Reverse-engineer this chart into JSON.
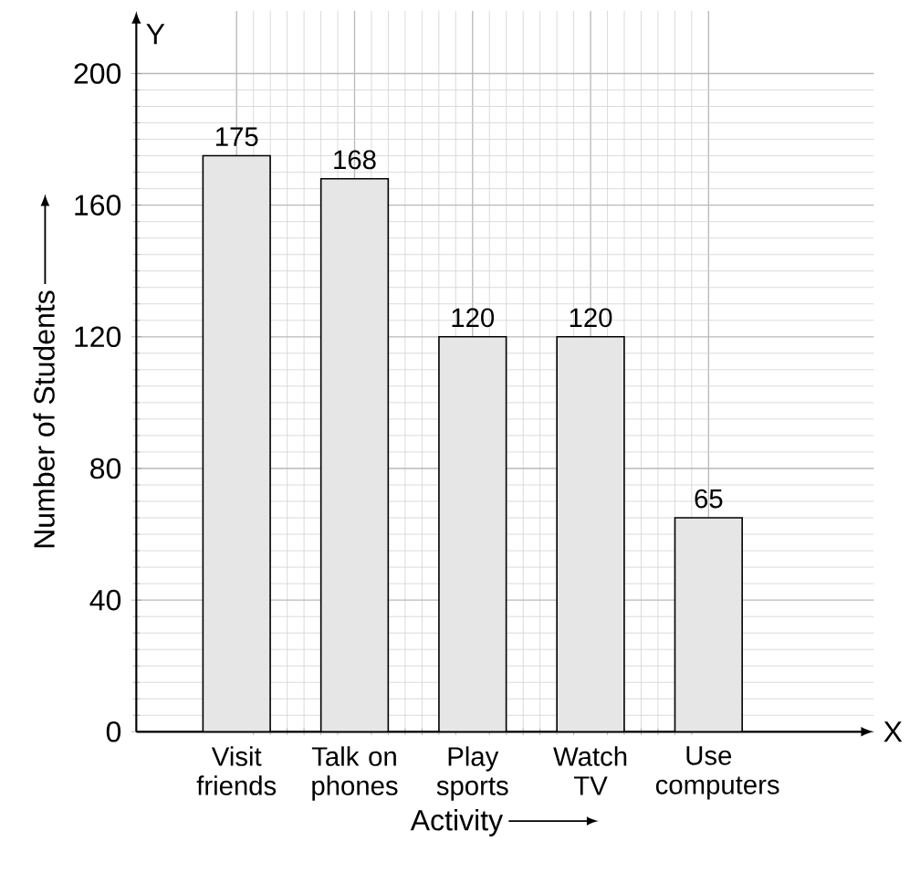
{
  "chart_data": {
    "type": "bar",
    "xlabel": "Activity",
    "ylabel": "Number of Students",
    "categories": [
      "Visit friends",
      "Talk on phones",
      "Play sports",
      "Watch TV",
      "Use computers"
    ],
    "values": [
      175,
      168,
      120,
      120,
      65
    ],
    "color": "#e6e6e6",
    "data_labels": true,
    "ylim": [
      0,
      219
    ],
    "yticks": [
      0,
      40,
      80,
      120,
      160,
      200
    ],
    "grid": true,
    "annotations": [
      "X",
      "Y"
    ]
  }
}
